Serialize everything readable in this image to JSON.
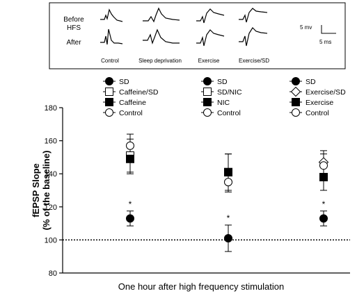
{
  "inset": {
    "row_labels": [
      "Before",
      "HFS",
      "After"
    ],
    "column_labels": [
      "Control",
      "Sleep deprivation",
      "Exercise",
      "Exercise/SD"
    ],
    "scale_voltage": "5 mv",
    "scale_time": "5 ms"
  },
  "chart_data": {
    "type": "scatter",
    "ylabel_line1": "fEPSP Slope",
    "ylabel_line2": "(% of the baseline)",
    "xlabel": "One hour after high frequency stimulation",
    "ylim": [
      80,
      180
    ],
    "yticks": [
      80,
      100,
      120,
      140,
      160,
      180
    ],
    "baseline": 100,
    "baseline_style": "dotted",
    "groups": [
      {
        "legend": [
          "SD",
          "Caffeine/SD",
          "Caffeine",
          "Control"
        ],
        "series": [
          {
            "name": "SD",
            "marker": "filled-circle",
            "y": 113,
            "err": 4.5,
            "annot": "*"
          },
          {
            "name": "Caffeine/SD",
            "marker": "open-square",
            "y": 151,
            "err": 10
          },
          {
            "name": "Caffeine",
            "marker": "filled-square",
            "y": 149,
            "err": 9
          },
          {
            "name": "Control",
            "marker": "open-circle",
            "y": 157,
            "err": 7
          }
        ]
      },
      {
        "legend": [
          "SD",
          "SD/NIC",
          "NIC",
          "Control"
        ],
        "series": [
          {
            "name": "SD",
            "marker": "filled-circle",
            "y": 101,
            "err": 8,
            "annot": "*"
          },
          {
            "name": "SD/NIC",
            "marker": "open-square",
            "y": 141,
            "err": 11
          },
          {
            "name": "NIC",
            "marker": "filled-square",
            "y": 141,
            "err": 11
          },
          {
            "name": "Control",
            "marker": "open-circle",
            "y": 135,
            "err": 6
          }
        ]
      },
      {
        "legend": [
          "SD",
          "Exercise/SD",
          "Exercise",
          "Control"
        ],
        "series": [
          {
            "name": "SD",
            "marker": "filled-circle",
            "y": 113,
            "err": 4.5,
            "annot": "*"
          },
          {
            "name": "Exercise/SD",
            "marker": "open-diamond",
            "y": 147,
            "err": 7
          },
          {
            "name": "Exercise",
            "marker": "filled-square",
            "y": 138,
            "err": 8
          },
          {
            "name": "Control",
            "marker": "open-circle",
            "y": 145,
            "err": 7
          }
        ]
      }
    ]
  }
}
